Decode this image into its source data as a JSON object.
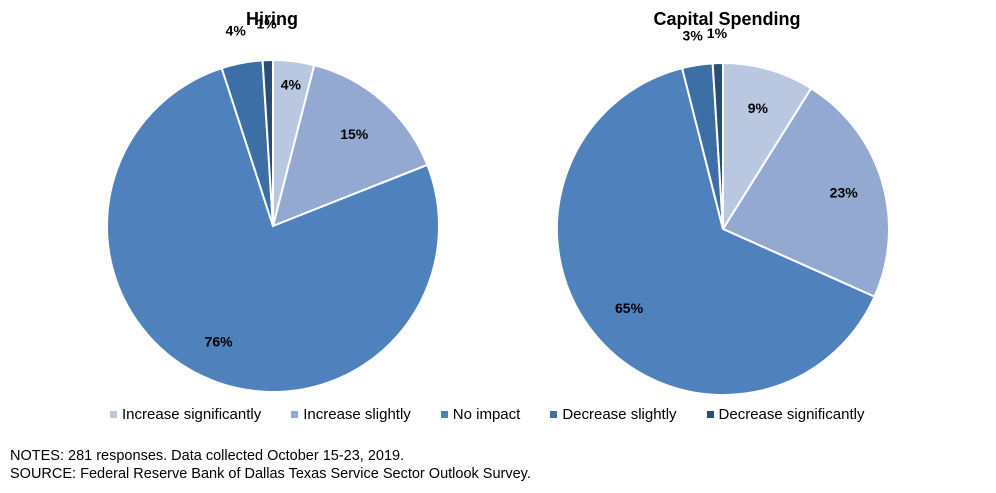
{
  "chart_data": [
    {
      "type": "pie",
      "title": "Hiring",
      "categories": [
        "Increase significantly",
        "Increase slightly",
        "No impact",
        "Decrease slightly",
        "Decrease significantly"
      ],
      "values": [
        4,
        15,
        76,
        4,
        1
      ],
      "labels": [
        "4%",
        "15%",
        "76%",
        "4%",
        "1%"
      ]
    },
    {
      "type": "pie",
      "title": "Capital Spending",
      "categories": [
        "Increase significantly",
        "Increase slightly",
        "No impact",
        "Decrease slightly",
        "Decrease significantly"
      ],
      "values": [
        9,
        23,
        65,
        3,
        1
      ],
      "labels": [
        "9%",
        "23%",
        "65%",
        "3%",
        "1%"
      ]
    }
  ],
  "legend": {
    "placement": "bottom",
    "items": [
      {
        "label": "Increase significantly",
        "color": "#b9c7e1"
      },
      {
        "label": "Increase slightly",
        "color": "#93a9d2"
      },
      {
        "label": "No impact",
        "color": "#4f81bd"
      },
      {
        "label": "Decrease slightly",
        "color": "#3d6ea5"
      },
      {
        "label": "Decrease significantly",
        "color": "#2c4d75"
      }
    ]
  },
  "notes": {
    "line1": "NOTES: 281 responses. Data collected October 15-23, 2019.",
    "line2": "SOURCE: Federal Reserve Bank of Dallas Texas Service Sector Outlook Survey."
  }
}
